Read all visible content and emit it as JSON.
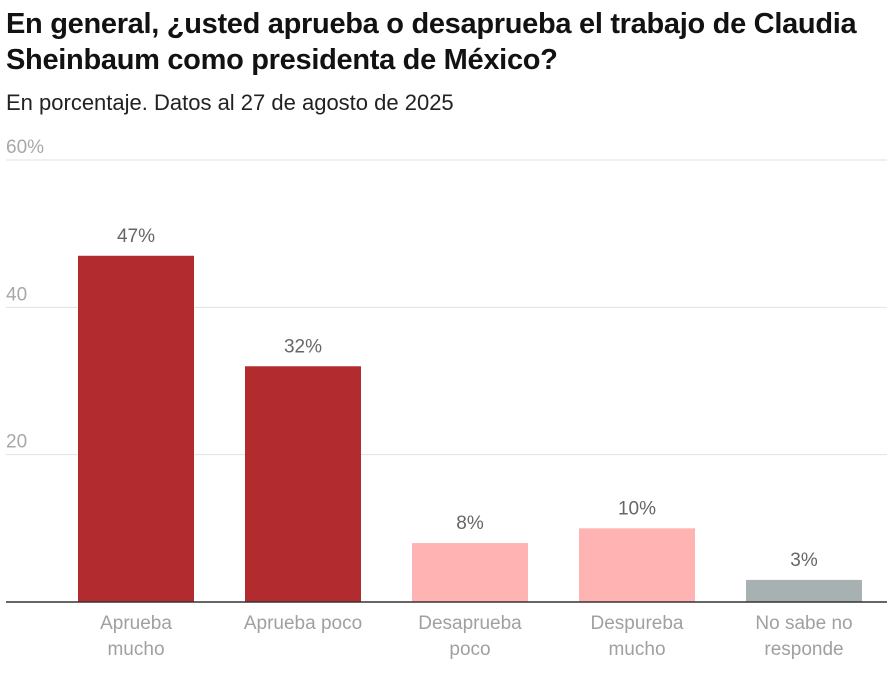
{
  "chart_data": {
    "type": "bar",
    "title": "En general, ¿usted aprueba o desaprueba el trabajo de Claudia Sheinbaum como presidenta de México?",
    "subtitle": "En porcentaje. Datos al 27 de agosto de 2025",
    "categories": [
      [
        "Aprueba",
        "mucho"
      ],
      [
        "Aprueba poco"
      ],
      [
        "Desaprueba",
        "poco"
      ],
      [
        "Despureba",
        "mucho"
      ],
      [
        "No sabe no",
        "responde"
      ]
    ],
    "values": [
      47,
      32,
      8,
      10,
      3
    ],
    "value_labels": [
      "47%",
      "32%",
      "8%",
      "10%",
      "3%"
    ],
    "colors": [
      "#b22b2e",
      "#b22b2e",
      "#ffb3b3",
      "#ffb3b3",
      "#a8b1b1"
    ],
    "ylim": [
      0,
      60
    ],
    "yticks": [
      {
        "value": 20,
        "label": "20"
      },
      {
        "value": 40,
        "label": "40"
      },
      {
        "value": 60,
        "label": "60%"
      }
    ],
    "grid": true
  }
}
